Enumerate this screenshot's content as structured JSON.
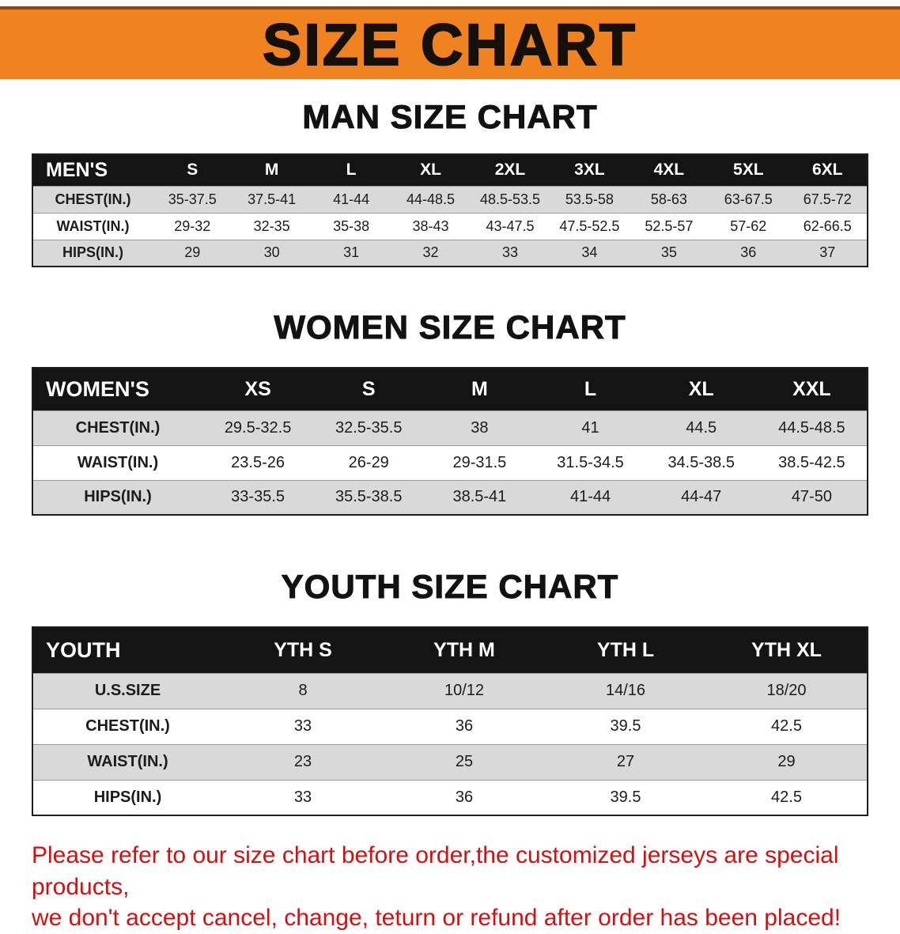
{
  "banner": {
    "title": "SIZE CHART"
  },
  "colors": {
    "banner_bg": "#f0831f",
    "header_bg": "#141414",
    "row_alt_bg": "#d9d9d9",
    "footer_text": "#d40f0f"
  },
  "sections": [
    {
      "heading": "MAN SIZE CHART",
      "table": {
        "header": [
          "MEN'S",
          "S",
          "M",
          "L",
          "XL",
          "2XL",
          "3XL",
          "4XL",
          "5XL",
          "6XL"
        ],
        "rows": [
          [
            "CHEST(IN.)",
            "35-37.5",
            "37.5-41",
            "41-44",
            "44-48.5",
            "48.5-53.5",
            "53.5-58",
            "58-63",
            "63-67.5",
            "67.5-72"
          ],
          [
            "WAIST(IN.)",
            "29-32",
            "32-35",
            "35-38",
            "38-43",
            "43-47.5",
            "47.5-52.5",
            "52.5-57",
            "57-62",
            "62-66.5"
          ],
          [
            "HIPS(IN.)",
            "29",
            "30",
            "31",
            "32",
            "33",
            "34",
            "35",
            "36",
            "37"
          ]
        ]
      }
    },
    {
      "heading": "WOMEN SIZE CHART",
      "table": {
        "header": [
          "WOMEN'S",
          "XS",
          "S",
          "M",
          "L",
          "XL",
          "XXL"
        ],
        "rows": [
          [
            "CHEST(IN.)",
            "29.5-32.5",
            "32.5-35.5",
            "38",
            "41",
            "44.5",
            "44.5-48.5"
          ],
          [
            "WAIST(IN.)",
            "23.5-26",
            "26-29",
            "29-31.5",
            "31.5-34.5",
            "34.5-38.5",
            "38.5-42.5"
          ],
          [
            "HIPS(IN.)",
            "33-35.5",
            "35.5-38.5",
            "38.5-41",
            "41-44",
            "44-47",
            "47-50"
          ]
        ]
      }
    },
    {
      "heading": "YOUTH SIZE CHART",
      "table": {
        "header": [
          "YOUTH",
          "YTH S",
          "YTH M",
          "YTH L",
          "YTH XL"
        ],
        "rows": [
          [
            "U.S.SIZE",
            "8",
            "10/12",
            "14/16",
            "18/20"
          ],
          [
            "CHEST(IN.)",
            "33",
            "36",
            "39.5",
            "42.5"
          ],
          [
            "WAIST(IN.)",
            "23",
            "25",
            "27",
            "29"
          ],
          [
            "HIPS(IN.)",
            "33",
            "36",
            "39.5",
            "42.5"
          ]
        ]
      }
    }
  ],
  "footer": {
    "line1": "Please refer to our size chart before order,the customized jerseys are special products,",
    "line2": "we don't accept cancel, change, teturn or refund after order has been placed!"
  }
}
